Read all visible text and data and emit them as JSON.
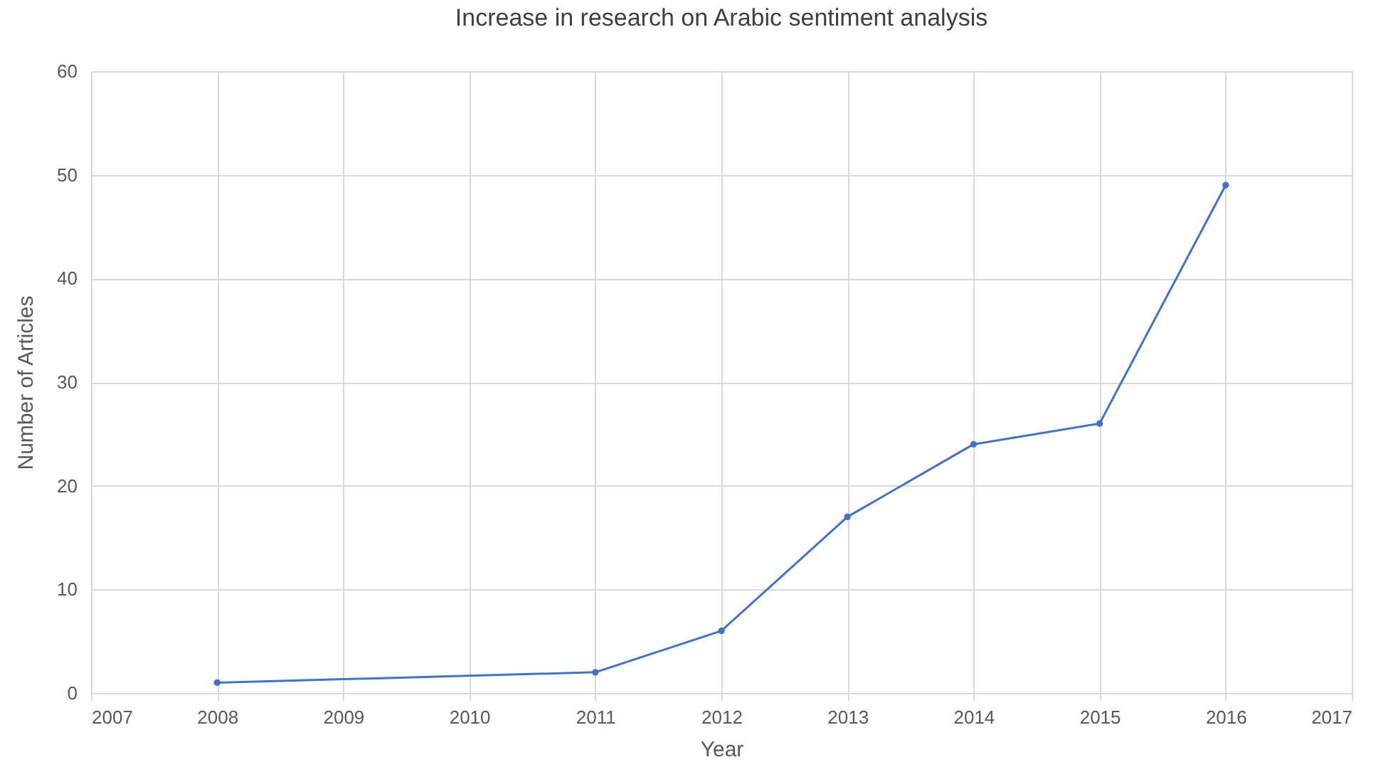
{
  "chart_data": {
    "type": "line",
    "title": "Increase in research on Arabic sentiment analysis",
    "xlabel": "Year",
    "ylabel": "Number of Articles",
    "x": [
      2008,
      2011,
      2012,
      2013,
      2014,
      2015,
      2016
    ],
    "series": [
      {
        "color": "#4472c4",
        "values": [
          1,
          2,
          6,
          17,
          24,
          26,
          49
        ]
      }
    ],
    "xlim": [
      2007,
      2017
    ],
    "xticks": [
      2007,
      2008,
      2009,
      2010,
      2011,
      2012,
      2013,
      2014,
      2015,
      2016,
      2017
    ],
    "ylim": [
      0,
      60
    ],
    "yticks": [
      0,
      10,
      20,
      30,
      40,
      50,
      60
    ],
    "grid": true,
    "marker": "circle",
    "line_style": "solid"
  }
}
